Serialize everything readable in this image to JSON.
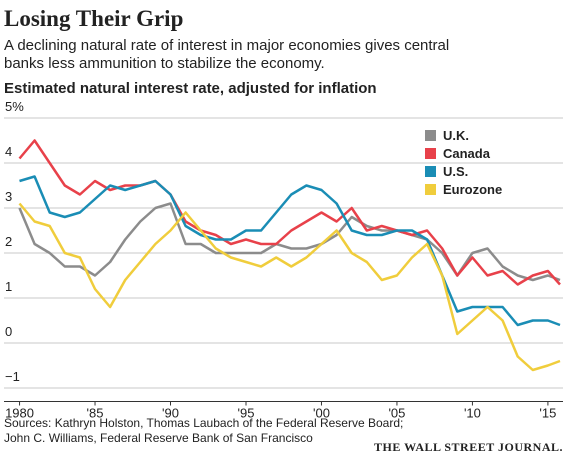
{
  "chart_data": {
    "type": "line",
    "title": "Losing Their Grip",
    "subtitle": [
      "A declining natural rate of interest in major economies gives central",
      "banks less ammunition to stabilize the economy."
    ],
    "chart_title": "Estimated natural interest rate, adjusted for inflation",
    "source": [
      "Sources: Kathryn Holston, Thomas Laubach of the Federal Reserve Board;",
      "John C. Williams, Federal Reserve Bank of San Francisco"
    ],
    "publisher": "THE WALL STREET JOURNAL.",
    "x": [
      1980,
      1981,
      1982,
      1983,
      1984,
      1985,
      1986,
      1987,
      1988,
      1989,
      1990,
      1991,
      1992,
      1993,
      1994,
      1995,
      1996,
      1997,
      1998,
      1999,
      2000,
      2001,
      2002,
      2003,
      2004,
      2005,
      2006,
      2007,
      2008,
      2009,
      2010,
      2011,
      2012,
      2013,
      2014,
      2015,
      2015.8
    ],
    "series": [
      {
        "name": "U.K.",
        "color": "#8c8c8c",
        "values": [
          3.0,
          2.2,
          2.0,
          1.7,
          1.7,
          1.5,
          1.8,
          2.3,
          2.7,
          3.0,
          3.1,
          2.2,
          2.2,
          2.0,
          2.0,
          2.0,
          2.0,
          2.2,
          2.1,
          2.1,
          2.2,
          2.4,
          2.8,
          2.6,
          2.5,
          2.5,
          2.4,
          2.3,
          2.0,
          1.5,
          2.0,
          2.1,
          1.7,
          1.5,
          1.4,
          1.5,
          1.4
        ]
      },
      {
        "name": "Canada",
        "color": "#e8414a",
        "values": [
          4.1,
          4.5,
          4.0,
          3.5,
          3.3,
          3.6,
          3.4,
          3.5,
          3.5,
          3.6,
          3.3,
          2.7,
          2.5,
          2.4,
          2.2,
          2.3,
          2.2,
          2.2,
          2.5,
          2.7,
          2.9,
          2.7,
          3.0,
          2.5,
          2.6,
          2.5,
          2.4,
          2.5,
          2.1,
          1.5,
          1.9,
          1.5,
          1.6,
          1.3,
          1.5,
          1.6,
          1.3
        ]
      },
      {
        "name": "U.S.",
        "color": "#1a8db5",
        "values": [
          3.6,
          3.7,
          2.9,
          2.8,
          2.9,
          3.2,
          3.5,
          3.4,
          3.5,
          3.6,
          3.3,
          2.6,
          2.4,
          2.3,
          2.3,
          2.5,
          2.5,
          2.9,
          3.3,
          3.5,
          3.4,
          3.1,
          2.5,
          2.4,
          2.4,
          2.5,
          2.5,
          2.3,
          1.5,
          0.7,
          0.8,
          0.8,
          0.8,
          0.4,
          0.5,
          0.5,
          0.4
        ]
      },
      {
        "name": "Eurozone",
        "color": "#f0cd3c",
        "values": [
          3.1,
          2.7,
          2.6,
          2.0,
          1.9,
          1.2,
          0.8,
          1.4,
          1.8,
          2.2,
          2.5,
          2.9,
          2.5,
          2.1,
          1.9,
          1.8,
          1.7,
          1.9,
          1.7,
          1.9,
          2.2,
          2.5,
          2.0,
          1.8,
          1.4,
          1.5,
          1.9,
          2.2,
          1.5,
          0.2,
          0.5,
          0.8,
          0.5,
          -0.3,
          -0.6,
          -0.5,
          -0.4
        ]
      }
    ],
    "xlim": [
      1979.5,
      2016
    ],
    "xticks": [
      1980,
      {
        "value": 1985,
        "label": "'85"
      },
      {
        "value": 1990,
        "label": "'90"
      },
      {
        "value": 1995,
        "label": "'95"
      },
      {
        "value": 2000,
        "label": "'00"
      },
      {
        "value": 2005,
        "label": "'05"
      },
      {
        "value": 2010,
        "label": "'10"
      },
      {
        "value": 2015,
        "label": "'15"
      }
    ],
    "ylim": [
      -1.3,
      5
    ],
    "yticks": [
      {
        "value": 5,
        "label": "5%"
      },
      4,
      3,
      2,
      1,
      0,
      {
        "value": -1,
        "label": "−1"
      }
    ],
    "grid": true,
    "legend": "upper right"
  }
}
